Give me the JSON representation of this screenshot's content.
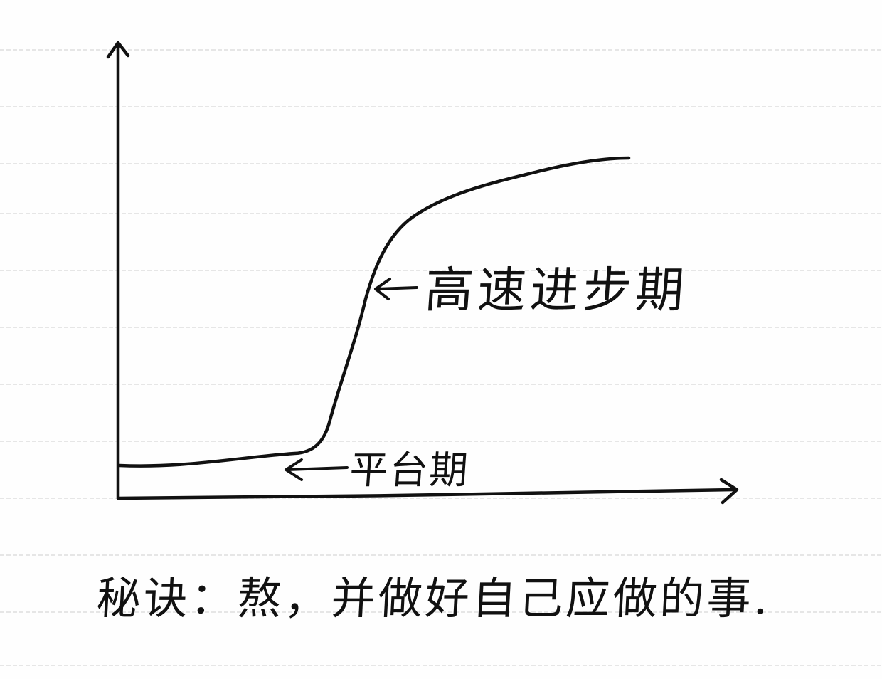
{
  "diagram": {
    "curve_label_fast": "高速进步期",
    "curve_label_plateau": "平台期"
  },
  "caption": {
    "prefix": "秘诀：",
    "text": "熬，并做好自己应做的事."
  },
  "colors": {
    "ink": "#111111",
    "paper": "#fefefe",
    "rule_line": "#d9d9d9"
  }
}
